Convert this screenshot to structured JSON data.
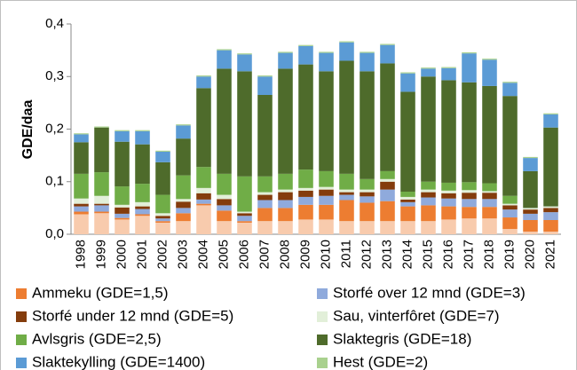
{
  "chart_data": {
    "type": "stacked_bar",
    "y_label": "GDE/daa",
    "categories": [
      "1998",
      "1999",
      "2000",
      "2001",
      "2002",
      "2003",
      "2004",
      "2005",
      "2006",
      "2007",
      "2008",
      "2009",
      "2010",
      "2011",
      "2012",
      "2013",
      "2014",
      "2015",
      "2016",
      "2017",
      "2018",
      "2019",
      "2020",
      "2021"
    ],
    "ylim": [
      0,
      0.4
    ],
    "yticks": [
      {
        "value": 0,
        "label": "0,0"
      },
      {
        "value": 0.1,
        "label": "0,1"
      },
      {
        "value": 0.2,
        "label": "0,2"
      },
      {
        "value": 0.3,
        "label": "0,3"
      },
      {
        "value": 0.4,
        "label": "0,4"
      }
    ],
    "series": [
      {
        "name": null,
        "color": "#f8cbad",
        "values": [
          0.038,
          0.04,
          0.028,
          0.035,
          0.022,
          0.025,
          0.055,
          0.025,
          0.022,
          0.025,
          0.025,
          0.028,
          0.028,
          0.025,
          0.025,
          0.025,
          0.025,
          0.025,
          0.028,
          0.03,
          0.03,
          0.01,
          0.005,
          0.005
        ]
      },
      {
        "name": "Ammeku (GDE=1,5)",
        "color": "#ed7d31",
        "values": [
          0.005,
          0.003,
          0.003,
          0.003,
          0.003,
          0.015,
          0.003,
          0.02,
          0.003,
          0.025,
          0.025,
          0.028,
          0.028,
          0.04,
          0.035,
          0.038,
          0.028,
          0.03,
          0.025,
          0.022,
          0.022,
          0.022,
          0.022,
          0.022
        ]
      },
      {
        "name": "Storfé over 12 mnd (GDE=3)",
        "color": "#8faadc",
        "values": [
          0.01,
          0.012,
          0.008,
          0.01,
          0.005,
          0.01,
          0.008,
          0.01,
          0.01,
          0.015,
          0.015,
          0.015,
          0.017,
          0.01,
          0.012,
          0.022,
          0.008,
          0.015,
          0.015,
          0.015,
          0.015,
          0.015,
          0.012,
          0.015
        ]
      },
      {
        "name": "Storfé under 12 mnd (GDE=5)",
        "color": "#843c0c",
        "values": [
          0.005,
          0.003,
          0.012,
          0.005,
          0.005,
          0.012,
          0.012,
          0.012,
          0.005,
          0.01,
          0.015,
          0.012,
          0.012,
          0.005,
          0.008,
          0.015,
          0.005,
          0.01,
          0.01,
          0.012,
          0.012,
          0.008,
          0.008,
          0.008
        ]
      },
      {
        "name": "Sau, vinterfôret (GDE=7)",
        "color": "#e2efd9",
        "values": [
          0.01,
          0.015,
          0.005,
          0.008,
          0.005,
          0.005,
          0.01,
          0.008,
          0.003,
          0.005,
          0.005,
          0.005,
          0.005,
          0.005,
          0.005,
          0.005,
          0.005,
          0.005,
          0.005,
          0.005,
          0.003,
          0.003,
          0.003,
          0.003
        ]
      },
      {
        "name": "Avlsgris (GDE=2,5)",
        "color": "#70ad47",
        "values": [
          0.047,
          0.045,
          0.035,
          0.035,
          0.035,
          0.045,
          0.04,
          0.04,
          0.067,
          0.03,
          0.03,
          0.035,
          0.03,
          0.03,
          0.02,
          0.015,
          0.01,
          0.015,
          0.015,
          0.015,
          0.015,
          0.015,
          0,
          0
        ]
      },
      {
        "name": "Slaktegris (GDE=18)",
        "color": "#4e6b2b",
        "values": [
          0.06,
          0.085,
          0.085,
          0.075,
          0.062,
          0.07,
          0.15,
          0.2,
          0.2,
          0.155,
          0.2,
          0.2,
          0.19,
          0.215,
          0.205,
          0.205,
          0.19,
          0.2,
          0.195,
          0.19,
          0.185,
          0.19,
          0.07,
          0.15
        ]
      },
      {
        "name": "Slaktekylling (GDE=1400)",
        "color": "#5b9bd5",
        "values": [
          0.015,
          0,
          0.02,
          0.025,
          0.02,
          0.025,
          0.022,
          0.035,
          0.032,
          0.035,
          0.03,
          0.035,
          0.035,
          0.035,
          0.035,
          0.035,
          0.035,
          0.015,
          0.023,
          0.055,
          0.05,
          0.025,
          0.025,
          0.025
        ]
      },
      {
        "name": "Hest (GDE=2)",
        "color": "#a9d18e",
        "values": [
          0.002,
          0.002,
          0.002,
          0.002,
          0.002,
          0.002,
          0.002,
          0.002,
          0.002,
          0.002,
          0.002,
          0.002,
          0.002,
          0.002,
          0.002,
          0.002,
          0.002,
          0.002,
          0.002,
          0.002,
          0.002,
          0.002,
          0.002,
          0.002
        ]
      }
    ]
  }
}
